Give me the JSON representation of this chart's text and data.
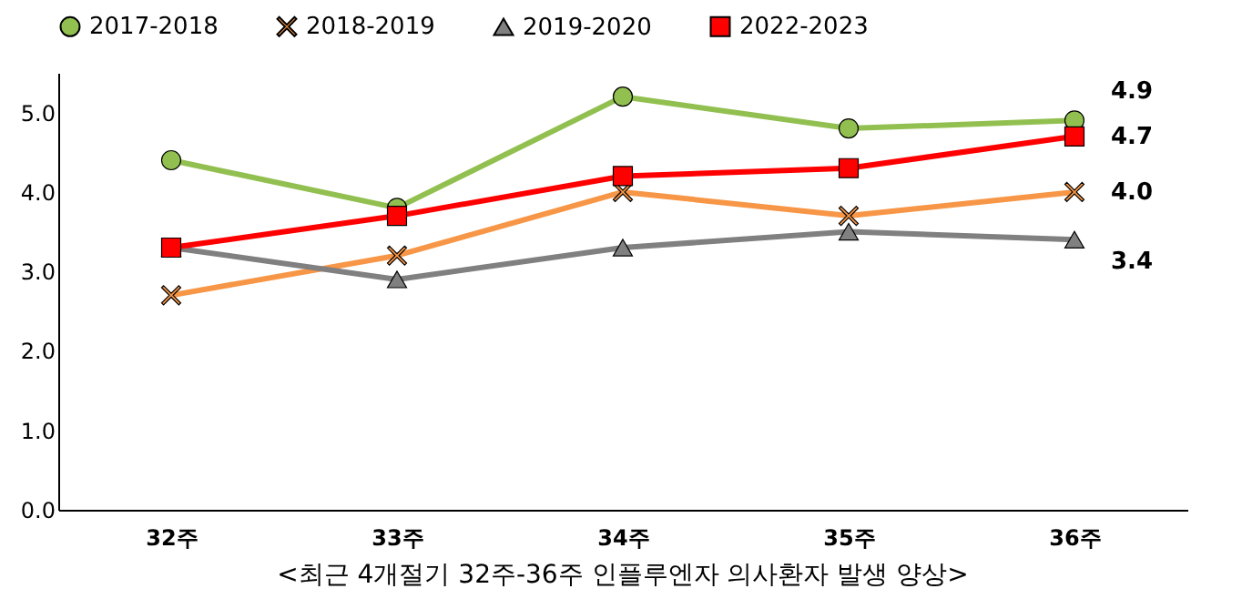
{
  "chart_data": {
    "type": "line",
    "categories": [
      "32주",
      "33주",
      "34주",
      "35주",
      "36주"
    ],
    "series": [
      {
        "name": "2017-2018",
        "color": "#92c050",
        "marker": "circle",
        "values": [
          4.4,
          3.8,
          5.2,
          4.8,
          4.9
        ]
      },
      {
        "name": "2018-2019",
        "color": "#f79646",
        "marker": "cross",
        "values": [
          2.7,
          3.2,
          4.0,
          3.7,
          4.0
        ]
      },
      {
        "name": "2019-2020",
        "color": "#808080",
        "marker": "triangle",
        "values": [
          3.3,
          2.9,
          3.3,
          3.5,
          3.4
        ]
      },
      {
        "name": "2022-2023",
        "color": "#ff0000",
        "marker": "square",
        "values": [
          3.3,
          3.7,
          4.2,
          4.3,
          4.7
        ]
      }
    ],
    "ylim": [
      0,
      5.5
    ],
    "yticks": [
      {
        "value": 0,
        "label": "0.0"
      },
      {
        "value": 1,
        "label": "1.0"
      },
      {
        "value": 2,
        "label": "2.0"
      },
      {
        "value": 3,
        "label": "3.0"
      },
      {
        "value": 4,
        "label": "4.0"
      },
      {
        "value": 5,
        "label": "5.0"
      }
    ],
    "grid": false,
    "legend": "top",
    "annotations": [
      {
        "text": "4.9",
        "x": "36주",
        "y": 4.9
      },
      {
        "text": "4.7",
        "x": "36주",
        "y": 4.7
      },
      {
        "text": "4.0",
        "x": "36주",
        "y": 4.0
      },
      {
        "text": "3.4",
        "x": "36주",
        "y": 3.4
      },
      "<최근 4개절기 32주-36주 인플루엔자 의사환자 발생 양상>"
    ]
  }
}
